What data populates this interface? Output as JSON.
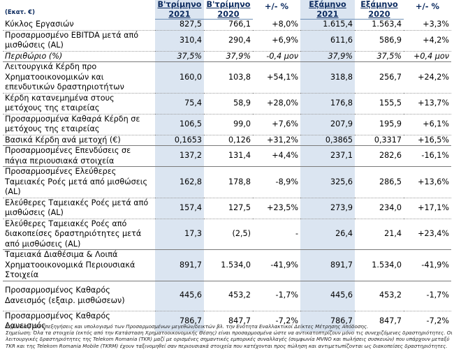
{
  "header": {
    "units": "(Εκατ. €)",
    "col1": [
      "Β'τρίμηνο",
      "2021"
    ],
    "col2": [
      "Β'τρίμηνο",
      "2020"
    ],
    "col3": "+/- %",
    "col4": [
      "Εξάμηνο",
      "2021"
    ],
    "col5": [
      "Εξάμηνο",
      "2020"
    ],
    "col6": "+/- %"
  },
  "rows": [
    {
      "label": "Κύκλος Εργασιών",
      "values": [
        "827,5",
        "766,1",
        "+8,0%",
        "1.615,4",
        "1.563,4",
        "+3,3%"
      ]
    },
    {
      "label": "Προσαρμοσμένο EBITDA μετά από μισθώσεις (AL)",
      "values": [
        "310,4",
        "290,4",
        "+6,9%",
        "611,6",
        "586,9",
        "+4,2%"
      ]
    },
    {
      "label": "Περιθώριο (%)",
      "values": [
        "37,5%",
        "37,9%",
        "-0,4 μον",
        "37,9%",
        "37,5%",
        "+0,4 μον"
      ]
    },
    {
      "label": "Λειτουργικά Κέρδη προ Χρηματοοικονομικών και επενδυτικών δραστηριοτήτων",
      "values": [
        "160,0",
        "103,8",
        "+54,1%",
        "318,8",
        "256,7",
        "+24,2%"
      ]
    },
    {
      "label": "Κέρδη κατανεμημένα στους μετόχους της εταιρείας",
      "values": [
        "75,4",
        "58,9",
        "+28,0%",
        "176,8",
        "155,5",
        "+13,7%"
      ]
    },
    {
      "label": "Προσαρμοσμένα Καθαρά Κέρδη σε μετόχους της εταιρείας",
      "values": [
        "106,5",
        "99,0",
        "+7,6%",
        "207,9",
        "195,9",
        "+6,1%"
      ]
    },
    {
      "label": "Βασικά Κέρδη ανά μετοχή (€)",
      "values": [
        "0,1653",
        "0,126",
        "+31,2%",
        "0,3865",
        "0,3317",
        "+16,5%"
      ]
    },
    {
      "label": "Προσαρμοσμένες Επενδύσεις σε πάγια περιουσιακά στοιχεία",
      "values": [
        "137,2",
        "131,4",
        "+4,4%",
        "237,1",
        "282,6",
        "-16,1%"
      ]
    },
    {
      "label": "Προσαρμοσμένες Ελεύθερες Ταμειακές Ροές μετά από μισθώσεις (AL)",
      "values": [
        "162,8",
        "178,8",
        "-8,9%",
        "325,6",
        "286,5",
        "+13,6%"
      ]
    },
    {
      "label": "Ελεύθερες Ταμειακές Ροές μετά από μισθώσεις (AL)",
      "values": [
        "157,4",
        "127,5",
        "+23,5%",
        "273,9",
        "234,0",
        "+17,1%"
      ]
    },
    {
      "label": "Ελεύθερες Ταμειακές Ροές από διακοπείσες δραστηριότητες μετά από μισθώσεις (AL)",
      "values": [
        "17,3",
        "(2,5)",
        "-",
        "26,4",
        "21,4",
        "+23,4%"
      ]
    },
    {
      "label": "Ταμειακά Διαθέσιμα & Λοιπά Χρηματοοικονομικά Περιουσιακά Στοιχεία",
      "values": [
        "891,7",
        "1.534,0",
        "-41,9%",
        "891,7",
        "1.534,0",
        "-41,9%"
      ]
    },
    {
      "label": "Προσαρμοσμένος Καθαρός Δανεισμός (εξαιρ. μισθώσεων)",
      "values": [
        "445,6",
        "453,2",
        "-1,7%",
        "445,6",
        "453,2",
        "-1,7%"
      ]
    },
    {
      "label": "Προσαρμοσμένος Καθαρός Δανεισμός",
      "values": [
        "786,7",
        "847,7",
        "-7,2%",
        "786,7",
        "847,7",
        "-7,2%"
      ]
    }
  ],
  "notes": [
    "Σημείωση: Για επεξηγήσεις και υπολογισμό των Προσαρμοσμένων μεγεθών/δεικτών βλ. την Ενότητα Εναλλακτικοί Δείκτες Μέτρησης Απόδοσης.",
    "Σημείωση: Όλα τα στοιχεία (εκτός από την Κατάσταση Χρηματοοικονομικής Θέσης) είναι προσαρμοσμένα ώστε να αντικατοπτρίζουν μόνο τις συνεχιζόμενες δραστηριότητες. Οι",
    "λειτουργικές δραστηριότητες της Telekom Romania (TKR) μαζί με ορισμένες σημαντικές εμπορικές συναλλαγές (συμφωνία MVNO και πωλήσεις συσκευών) που υπάρχουν μεταξύ",
    "TKR και της Telekom Romania Mobile (TKRM) έχουν ταξινομηθεί σαν περιουσιακά στοιχεία που κατέχονται προς πώληση και αντιμετωπίζονται ως διακοπείσες δραστηριότητες."
  ]
}
